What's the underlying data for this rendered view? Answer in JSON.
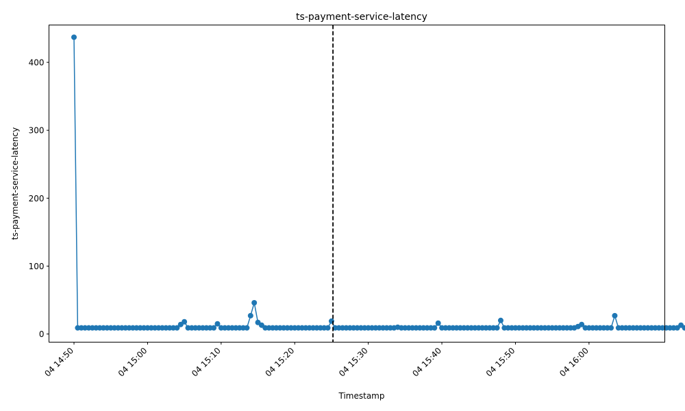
{
  "chart_data": {
    "type": "line",
    "title": "ts-payment-service-latency",
    "xlabel": "Timestamp",
    "ylabel": "ts-payment-service-latency",
    "ylim": [
      -12,
      455
    ],
    "y_ticks": [
      0,
      100,
      200,
      300,
      400
    ],
    "x_tick_labels": [
      "04 14:50",
      "04 15:00",
      "04 15:10",
      "04 15:20",
      "04 15:30",
      "04 15:40",
      "04 15:50",
      "04 16:00"
    ],
    "x_tick_minutes": [
      0,
      10,
      20,
      30,
      40,
      50,
      60,
      70
    ],
    "xlim_minutes": [
      -3.4,
      80.3
    ],
    "vline_minute": 35.2,
    "vline_style": "dashed",
    "marker": "circle",
    "color": "#1f77b4",
    "grid": false,
    "x_start_time": "04 14:51",
    "x_step_minutes": 0.5,
    "values": [
      437,
      9,
      9,
      9,
      9,
      9,
      9,
      9,
      9,
      9,
      9,
      9,
      9,
      9,
      9,
      9,
      9,
      9,
      9,
      9,
      9,
      9,
      9,
      9,
      9,
      9,
      9,
      9,
      9,
      14,
      18,
      9,
      9,
      9,
      9,
      9,
      9,
      9,
      9,
      15,
      9,
      9,
      9,
      9,
      9,
      9,
      9,
      9,
      27,
      46,
      17,
      13,
      9,
      9,
      9,
      9,
      9,
      9,
      9,
      9,
      9,
      9,
      9,
      9,
      9,
      9,
      9,
      9,
      9,
      9,
      19,
      9,
      9,
      9,
      9,
      9,
      9,
      9,
      9,
      9,
      9,
      9,
      9,
      9,
      9,
      9,
      9,
      9,
      10,
      9,
      9,
      9,
      9,
      9,
      9,
      9,
      9,
      9,
      9,
      16,
      9,
      9,
      9,
      9,
      9,
      9,
      9,
      9,
      9,
      9,
      9,
      9,
      9,
      9,
      9,
      9,
      20,
      9,
      9,
      9,
      9,
      9,
      9,
      9,
      9,
      9,
      9,
      9,
      9,
      9,
      9,
      9,
      9,
      9,
      9,
      9,
      9,
      11,
      14,
      9,
      9,
      9,
      9,
      9,
      9,
      9,
      9,
      27,
      9,
      9,
      9,
      9,
      9,
      9,
      9,
      9,
      9,
      9,
      9,
      9,
      9,
      9,
      9,
      9,
      9,
      13,
      9,
      9
    ]
  }
}
